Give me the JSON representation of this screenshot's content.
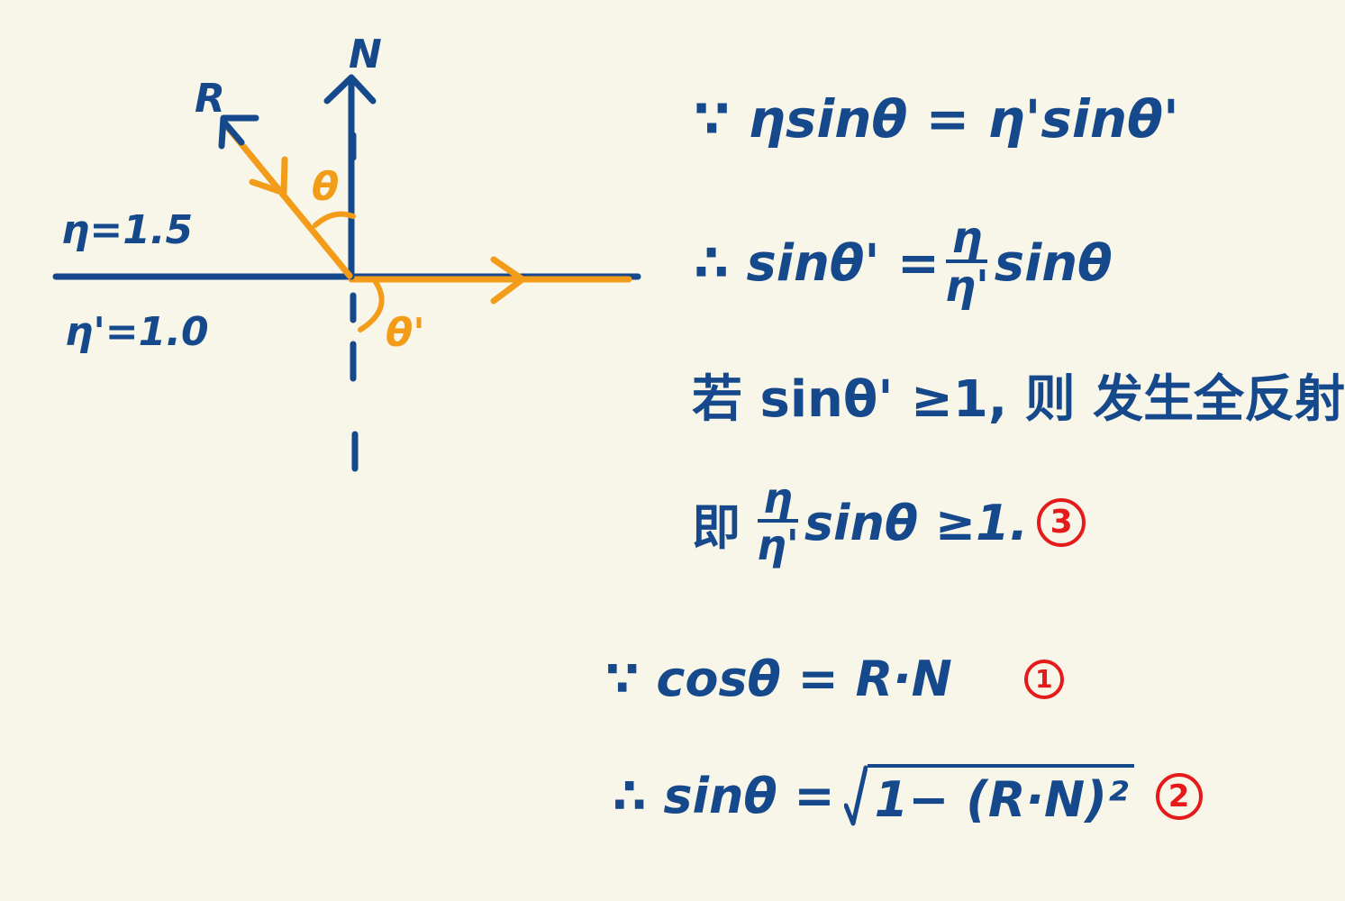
{
  "colors": {
    "background": "#f8f5e9",
    "blue": "#15498c",
    "orange": "#f39c1a",
    "red": "#e51a1a"
  },
  "diagram": {
    "label_normal": "N",
    "label_reflect": "R",
    "label_theta": "θ",
    "label_theta_prime": "θ'",
    "label_n_top": "η=1.5",
    "label_n_bottom": "η'=1.0"
  },
  "notes": {
    "line1": "∵ ηsinθ = η'sinθ'",
    "line2_prefix": "∴ sinθ' =",
    "line2_num": "η",
    "line2_den": "η'",
    "line2_suffix": "sinθ",
    "line3": "若 sinθ' ≥1, 则 发生全反射.",
    "line4_prefix": "即",
    "line4_num": "η",
    "line4_den": "η'",
    "line4_suffix": "sinθ ≥1.",
    "line4_mark": "3",
    "line5": "∵ cosθ = R·N",
    "line5_mark": "1",
    "line6_prefix": "∴ sinθ =",
    "line6_radicand": "1− (R·N)²",
    "line6_mark": "2"
  }
}
